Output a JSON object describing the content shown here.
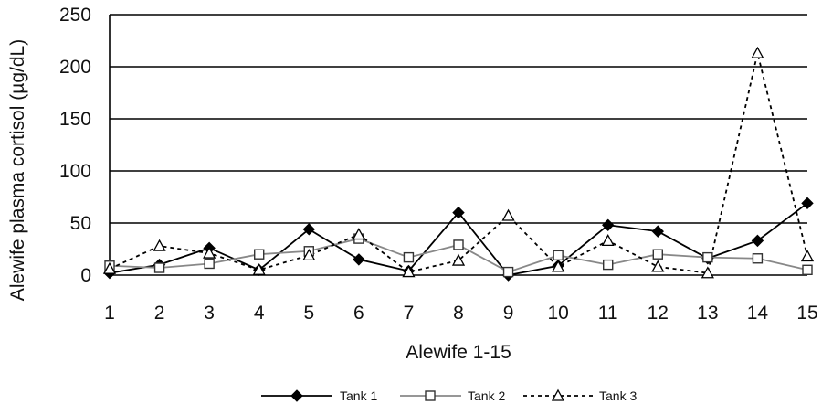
{
  "chart_data": {
    "type": "line",
    "title": "",
    "xlabel": "Alewife 1-15",
    "ylabel": "Alewife plasma cortisol (µg/dL)",
    "x": [
      1,
      2,
      3,
      4,
      5,
      6,
      7,
      8,
      9,
      10,
      11,
      12,
      13,
      14,
      15
    ],
    "x_tick_labels": [
      "1",
      "2",
      "3",
      "4",
      "5",
      "6",
      "7",
      "8",
      "9",
      "10",
      "11",
      "12",
      "13",
      "14",
      "15"
    ],
    "ylim": [
      0,
      250
    ],
    "y_ticks": [
      0,
      50,
      100,
      150,
      200,
      250
    ],
    "y_tick_labels": [
      "0",
      "50",
      "100",
      "150",
      "200",
      "250"
    ],
    "grid": "horizontal",
    "legend_position": "bottom",
    "series": [
      {
        "name": "Tank 1",
        "values": [
          2,
          10,
          26,
          5,
          44,
          15,
          4,
          60,
          0,
          9,
          48,
          42,
          16,
          33,
          69
        ],
        "color": "#000000",
        "dash": "solid",
        "marker": "diamond-filled"
      },
      {
        "name": "Tank 2",
        "values": [
          9,
          7,
          11,
          20,
          23,
          35,
          17,
          29,
          3,
          19,
          10,
          20,
          17,
          16,
          5
        ],
        "color": "#888888",
        "dash": "solid",
        "marker": "square-open"
      },
      {
        "name": "Tank 3",
        "values": [
          6,
          28,
          21,
          5,
          19,
          39,
          3,
          14,
          57,
          8,
          33,
          8,
          2,
          213,
          18
        ],
        "color": "#000000",
        "dash": "dotted",
        "marker": "triangle-open"
      }
    ]
  }
}
